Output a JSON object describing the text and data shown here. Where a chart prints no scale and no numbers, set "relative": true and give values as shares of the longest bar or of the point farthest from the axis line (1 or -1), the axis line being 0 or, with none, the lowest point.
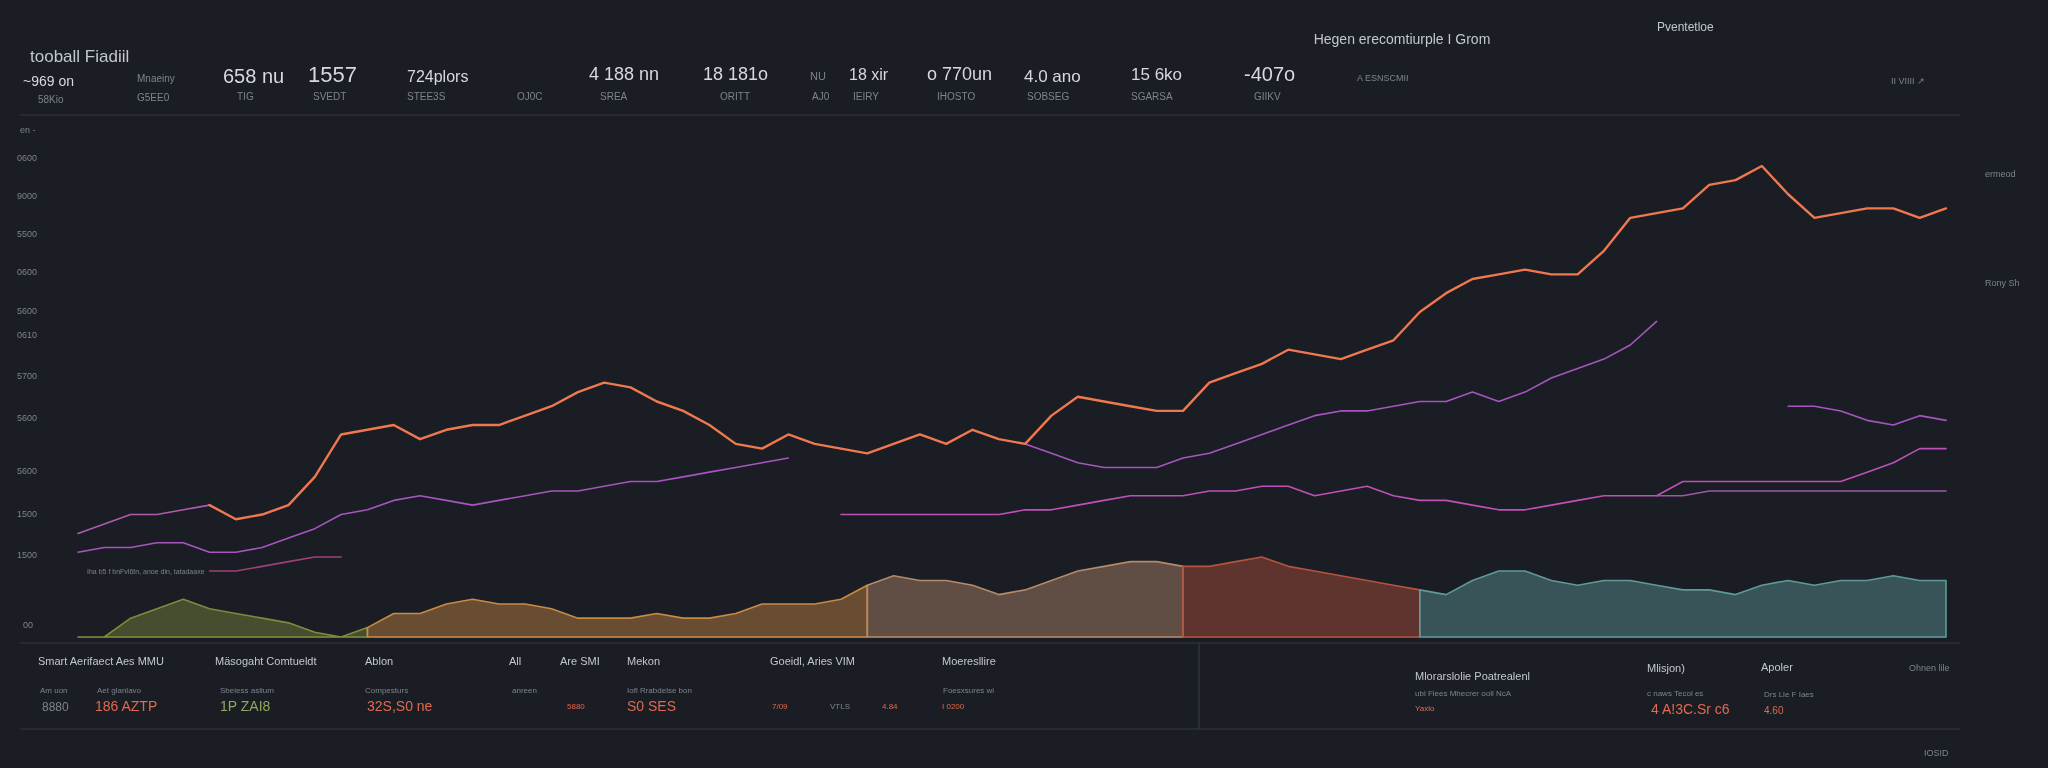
{
  "chart_data": {
    "type": "line",
    "relative": true,
    "title": "tooball Fiadiil",
    "subtitle": "Hegen erecomtiurple I Grom",
    "categories": [
      null,
      null,
      null,
      null,
      null,
      null,
      null,
      null,
      null,
      null,
      null,
      null,
      null,
      null,
      null,
      null,
      null,
      null,
      null,
      null,
      null,
      null,
      null,
      null,
      null,
      null,
      null,
      null,
      null,
      null,
      null,
      null,
      null,
      null,
      null,
      null,
      null,
      null,
      null,
      null,
      null,
      null,
      null,
      null,
      null,
      null,
      null,
      null,
      null,
      null,
      null,
      null,
      null,
      null,
      null,
      null,
      null,
      null,
      null,
      null,
      null,
      null,
      null,
      null,
      null,
      null,
      null,
      null,
      null,
      null,
      null,
      null
    ],
    "series": [
      {
        "type": "area",
        "color": "#7f8a3e",
        "values": [
          0.0,
          0.0,
          0.04,
          0.06,
          0.08,
          0.06,
          0.05,
          0.04,
          0.03,
          0.01,
          0.0,
          0.02,
          null,
          null,
          null,
          null,
          null,
          null,
          null,
          null,
          null,
          null,
          null,
          null,
          null,
          null,
          null,
          null,
          null,
          null,
          null,
          null,
          null,
          null,
          null,
          null,
          null,
          null,
          null,
          null,
          null,
          null,
          null,
          null,
          null,
          null,
          null,
          null,
          null,
          null,
          null,
          null,
          null,
          null,
          null,
          null,
          null,
          null,
          null,
          null,
          null,
          null,
          null,
          null,
          null,
          null,
          null,
          null,
          null,
          null,
          null,
          null
        ]
      },
      {
        "type": "area",
        "color": "#c98a44",
        "values": [
          null,
          null,
          null,
          null,
          null,
          null,
          null,
          null,
          null,
          null,
          null,
          0.02,
          0.05,
          0.05,
          0.07,
          0.08,
          0.07,
          0.07,
          0.06,
          0.04,
          0.04,
          0.04,
          0.05,
          0.04,
          0.04,
          0.05,
          0.07,
          0.07,
          0.07,
          0.08,
          0.11,
          null,
          null,
          null,
          null,
          null,
          null,
          null,
          null,
          null,
          null,
          null,
          null,
          null,
          null,
          null,
          null,
          null,
          null,
          null,
          null,
          null,
          null,
          null,
          null,
          null,
          null,
          null,
          null,
          null,
          null,
          null,
          null,
          null,
          null,
          null,
          null,
          null,
          null,
          null,
          null,
          null
        ]
      },
      {
        "type": "area",
        "color": "#b58a6a",
        "values": [
          null,
          null,
          null,
          null,
          null,
          null,
          null,
          null,
          null,
          null,
          null,
          null,
          null,
          null,
          null,
          null,
          null,
          null,
          null,
          null,
          null,
          null,
          null,
          null,
          null,
          null,
          null,
          null,
          null,
          null,
          0.11,
          0.13,
          0.12,
          0.12,
          0.11,
          0.09,
          0.1,
          0.12,
          0.14,
          0.15,
          0.16,
          0.16,
          0.15,
          null,
          null,
          null,
          null,
          null,
          null,
          null,
          null,
          null,
          null,
          null,
          null,
          null,
          null,
          null,
          null,
          null,
          null,
          null,
          null,
          null,
          null,
          null,
          null,
          null,
          null,
          null,
          null,
          null
        ]
      },
      {
        "type": "area",
        "color": "#b4533f",
        "values": [
          null,
          null,
          null,
          null,
          null,
          null,
          null,
          null,
          null,
          null,
          null,
          null,
          null,
          null,
          null,
          null,
          null,
          null,
          null,
          null,
          null,
          null,
          null,
          null,
          null,
          null,
          null,
          null,
          null,
          null,
          null,
          null,
          null,
          null,
          null,
          null,
          null,
          null,
          null,
          null,
          null,
          null,
          0.15,
          0.15,
          0.16,
          0.17,
          0.15,
          0.14,
          0.13,
          0.12,
          0.11,
          0.1,
          null,
          null,
          null,
          null,
          null,
          null,
          null,
          null,
          null,
          null,
          null,
          null,
          null,
          null,
          null,
          null,
          null,
          null,
          null,
          null
        ]
      },
      {
        "type": "area",
        "color": "#5e9a9a",
        "values": [
          null,
          null,
          null,
          null,
          null,
          null,
          null,
          null,
          null,
          null,
          null,
          null,
          null,
          null,
          null,
          null,
          null,
          null,
          null,
          null,
          null,
          null,
          null,
          null,
          null,
          null,
          null,
          null,
          null,
          null,
          null,
          null,
          null,
          null,
          null,
          null,
          null,
          null,
          null,
          null,
          null,
          null,
          null,
          null,
          null,
          null,
          null,
          null,
          null,
          null,
          null,
          0.1,
          0.09,
          0.12,
          0.14,
          0.14,
          0.12,
          0.11,
          0.12,
          0.12,
          0.11,
          0.1,
          0.1,
          0.09,
          0.11,
          0.12,
          0.11,
          0.12,
          0.12,
          0.13,
          0.12,
          0.12
        ]
      },
      {
        "color": "#a0407a",
        "values": [
          null,
          null,
          null,
          null,
          null,
          0.14,
          0.14,
          0.15,
          0.16,
          0.17,
          0.17,
          null,
          null,
          null,
          null,
          null,
          null,
          null,
          null,
          null,
          null,
          null,
          null,
          null,
          null,
          null,
          null,
          null,
          null,
          null,
          null,
          null,
          null,
          null,
          null,
          null,
          null,
          null,
          null,
          null,
          null,
          null,
          null,
          null,
          null,
          null,
          null,
          null,
          null,
          null,
          null,
          null,
          null,
          null,
          null,
          null,
          null,
          null,
          null,
          null,
          null,
          null,
          null,
          null,
          null,
          null,
          null,
          null,
          null,
          null,
          null,
          null
        ]
      },
      {
        "color": "#c050b8",
        "values": [
          null,
          null,
          null,
          null,
          null,
          null,
          null,
          null,
          null,
          null,
          null,
          null,
          null,
          null,
          null,
          null,
          null,
          null,
          null,
          null,
          null,
          null,
          null,
          null,
          null,
          null,
          null,
          null,
          null,
          0.26,
          0.26,
          0.26,
          0.26,
          0.26,
          0.26,
          0.26,
          0.27,
          0.27,
          0.28,
          0.29,
          0.3,
          0.3,
          0.3,
          0.31,
          0.31,
          0.32,
          0.32,
          0.3,
          0.31,
          0.32,
          0.3,
          0.29,
          0.29,
          0.28,
          0.27,
          0.27,
          0.28,
          0.29,
          0.3,
          0.3,
          0.3,
          0.33,
          0.33,
          0.33,
          0.33,
          0.33,
          0.33,
          0.33,
          0.35,
          0.37,
          0.4,
          0.4
        ]
      },
      {
        "color": "#9a5aa8",
        "values": [
          null,
          null,
          null,
          null,
          null,
          null,
          null,
          null,
          null,
          null,
          null,
          null,
          null,
          null,
          null,
          null,
          null,
          null,
          null,
          null,
          null,
          null,
          null,
          null,
          null,
          null,
          null,
          null,
          null,
          null,
          null,
          null,
          null,
          null,
          null,
          null,
          null,
          null,
          null,
          null,
          null,
          null,
          null,
          null,
          null,
          null,
          null,
          null,
          null,
          null,
          null,
          null,
          null,
          null,
          null,
          null,
          null,
          null,
          null,
          null,
          0.3,
          0.3,
          0.31,
          0.31,
          0.31,
          0.31,
          0.31,
          0.31,
          0.31,
          0.31,
          0.31,
          0.31
        ]
      },
      {
        "color": "#a855c0",
        "values": [
          0.18,
          0.19,
          0.19,
          0.2,
          0.2,
          0.18,
          0.18,
          0.19,
          0.21,
          0.23,
          0.26,
          0.27,
          0.29,
          0.3,
          0.29,
          0.28,
          0.29,
          0.3,
          0.31,
          0.31,
          0.32,
          0.33,
          0.33,
          0.34,
          0.35,
          0.36,
          0.37,
          0.38,
          null,
          null,
          null,
          null,
          null,
          null,
          null,
          null,
          0.41,
          0.39,
          0.37,
          0.36,
          0.36,
          0.36,
          0.38,
          0.39,
          0.41,
          0.43,
          0.45,
          0.47,
          0.48,
          0.48,
          0.49,
          0.5,
          0.5,
          0.52,
          0.5,
          0.52,
          0.55,
          0.57,
          0.59,
          0.62,
          0.67,
          null,
          null,
          null,
          null,
          0.49,
          0.49,
          0.48,
          0.46,
          0.45,
          0.47,
          0.46
        ]
      },
      {
        "color": "#b05cae",
        "values": [
          0.22,
          0.24,
          0.26,
          0.26,
          0.27,
          0.28,
          null,
          null,
          null,
          null,
          null,
          null,
          null,
          null,
          null,
          null,
          null,
          null,
          null,
          null,
          null,
          null,
          null,
          null,
          null,
          null,
          null,
          null,
          null,
          null,
          null,
          null,
          null,
          null,
          null,
          null,
          null,
          null,
          null,
          null,
          null,
          null,
          null,
          null,
          null,
          null,
          null,
          null,
          null,
          null,
          null,
          null,
          null,
          null,
          null,
          null,
          null,
          null,
          null,
          null,
          null,
          null,
          null,
          null,
          null,
          null,
          null,
          null,
          null,
          null,
          null,
          null
        ]
      },
      {
        "color": "#f0784f",
        "values": [
          null,
          null,
          null,
          null,
          null,
          0.28,
          0.25,
          0.26,
          0.28,
          0.34,
          0.43,
          0.44,
          0.45,
          0.42,
          0.44,
          0.45,
          0.45,
          0.47,
          0.49,
          0.52,
          0.54,
          0.53,
          0.5,
          0.48,
          0.45,
          0.41,
          0.4,
          0.43,
          0.41,
          0.4,
          0.39,
          0.41,
          0.43,
          0.41,
          0.44,
          0.42,
          0.41,
          0.47,
          0.51,
          0.5,
          0.49,
          0.48,
          0.48,
          0.54,
          0.56,
          0.58,
          0.61,
          0.6,
          0.59,
          0.61,
          0.63,
          0.69,
          0.73,
          0.76,
          0.77,
          0.78,
          0.77,
          0.77,
          0.82,
          0.89,
          0.9,
          0.91,
          0.96,
          0.97,
          1,
          0.94,
          0.89,
          0.9,
          0.91,
          0.91,
          0.89,
          0.91
        ]
      }
    ],
    "annotations": [
      "~969 on",
      "58Kio",
      "Mnaeiny",
      "G5EE0",
      "658 nu",
      "TIG",
      "1557",
      "SVEDT",
      "724plors",
      "STEE3S",
      "OJ0C",
      "4 188 nn",
      "SREA",
      "18 181o",
      "ORITT",
      "NU",
      "AJ0",
      "18 xir",
      "IEIRY",
      "o 770un",
      "IHOSTO",
      "4.0 ano",
      "SOBSEG",
      "15 6ko",
      "SGARSA",
      "-407o",
      "GIIKV",
      "A ESNSCMII",
      "Pventetloe",
      "II VIIII ↗",
      "en -",
      "0600",
      "9000",
      "5500",
      "0600",
      "5600",
      "0610",
      "5700",
      "5600",
      "5600",
      "1500",
      "1500",
      "00",
      "Iha b5 f bnFvl6tn, anoe din, tatadaaxe",
      "Smart Aerifaect Aes MMU",
      "Mäsogaht Comtueldt",
      "Ablon",
      "All",
      "Are SMI",
      "Mekon",
      "Goeidl, Aries VIM",
      "Moeresllire",
      "Am uon",
      "Aet glanlavo",
      "Sbeiess aslium",
      "Compesturs",
      "anreen",
      "Iofl Rrabdelse bon",
      "Foesxsures wi",
      "8880",
      "186 AZTP",
      "1P ZAI8",
      "32S,S0 ne",
      "5880",
      "S0 SES",
      "7/09",
      "VTLS",
      "4.84",
      "I 0200",
      "Mlorarslolie Poatrealenl",
      "ubl Flees Mhecrer ooll NcA",
      "Yaxlo",
      "Mlisjon)",
      "c naws Tecol es",
      "4 A!3C.Sr c6",
      "Apoler",
      "Drs Lle F Iaes",
      "4.60",
      "Ohnen lile",
      "IOSID",
      "ermeod",
      "Rony Sh"
    ]
  }
}
